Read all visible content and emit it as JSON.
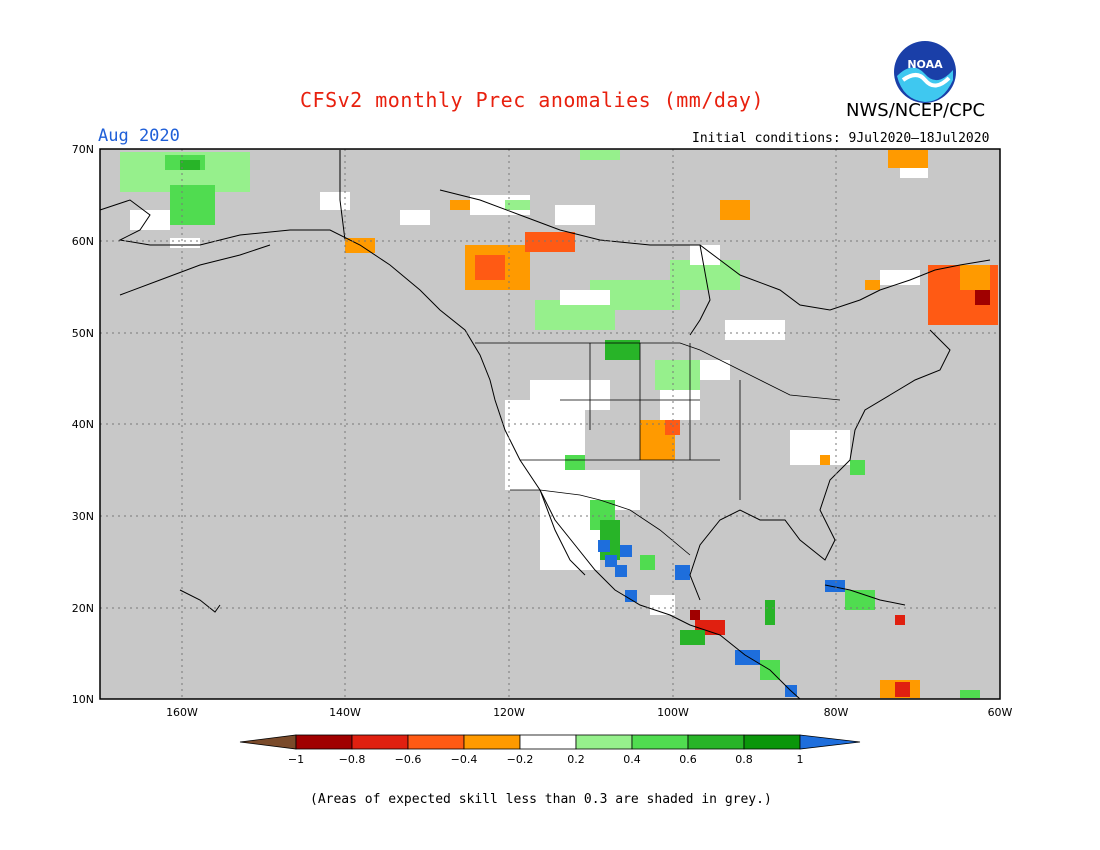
{
  "header": {
    "title": "CFSv2 monthly Prec anomalies (mm/day)",
    "agency": "NWS/NCEP/CPC",
    "month": "Aug 2020",
    "initial_conditions": "Initial conditions: 9Jul2020–18Jul2020",
    "logo_text": "NOAA"
  },
  "map": {
    "lon_range": [
      -172,
      -60
    ],
    "lat_range": [
      10,
      70
    ],
    "lat_labels": [
      "70N",
      "60N",
      "50N",
      "40N",
      "30N",
      "20N",
      "10N"
    ],
    "lon_labels": [
      "160W",
      "140W",
      "120W",
      "100W",
      "80W",
      "60W"
    ],
    "background_color": "#c8c8c8",
    "gridlines": "dotted"
  },
  "legend": {
    "tick_labels": [
      "−1",
      "−0.8",
      "−0.6",
      "−0.4",
      "−0.2",
      "0.2",
      "0.4",
      "0.6",
      "0.8",
      "1"
    ],
    "colors": [
      "#7a4a2a",
      "#a00000",
      "#e02010",
      "#ff5a14",
      "#ff9a00",
      "#ffffff",
      "#96f08c",
      "#50dc50",
      "#28b428",
      "#0a960a",
      "#1e6edc"
    ]
  },
  "footnote": "(Areas of expected skill less than 0.3 are shaded in grey.)"
}
